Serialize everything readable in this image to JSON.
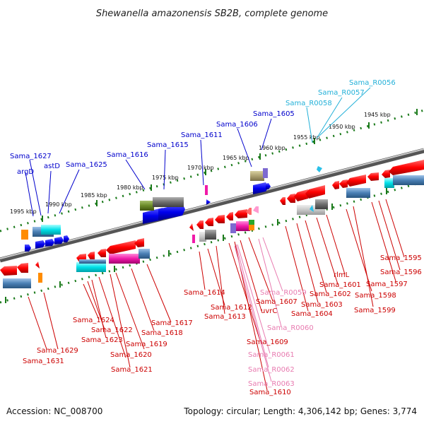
{
  "title": "Shewanella amazonensis SB2B, complete genome",
  "accession": "Accession: NC_008700",
  "summary": "Topology: circular; Length: 4,306,142 bp; Genes: 3,774",
  "colors": {
    "forward_label": "#0000cc",
    "reverse_label": "#cc0000",
    "rna_label": "#22b0d8",
    "rna_reverse_label": "#e87bb0"
  },
  "kbp_ticks": [
    "1945 kbp",
    "1950 kbp",
    "1955 kbp",
    "1960 kbp",
    "1965 kbp",
    "1970 kbp",
    "1975 kbp",
    "1980 kbp",
    "1985 kbp",
    "1990 kbp",
    "1995 kbp"
  ],
  "labels_top": [
    "argD",
    "Sama_1627",
    "astD",
    "Sama_1625",
    "Sama_1616",
    "Sama_1615",
    "Sama_1611",
    "Sama_1606",
    "Sama_1605"
  ],
  "labels_top_rna": [
    "Sama_R0058",
    "Sama_R0057",
    "Sama_R0056"
  ],
  "labels_bottom": [
    "Sama_1629",
    "Sama_1631",
    "Sama_1624",
    "Sama_1622",
    "Sama_1623",
    "Sama_1620",
    "Sama_1621",
    "Sama_1619",
    "Sama_1618",
    "Sama_1617",
    "Sama_1614",
    "Sama_1612",
    "Sama_1613",
    "Sama_1609",
    "Sama_1610",
    "uvrC",
    "Sama_1607",
    "Sama_1604",
    "Sama_1603",
    "Sama_1602",
    "rlmL",
    "Sama_1601",
    "Sama_1598",
    "Sama_1599",
    "Sama_1597",
    "Sama_1596",
    "Sama_1595"
  ],
  "labels_bottom_rna": [
    "Sama_R0059",
    "Sama_R0060",
    "Sama_R0061",
    "Sama_R0062",
    "Sama_R0063"
  ]
}
